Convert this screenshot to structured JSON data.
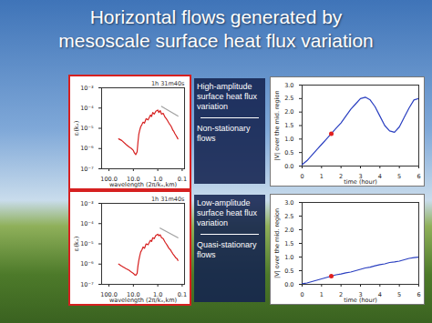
{
  "title": [
    "Horizontal flows generated by",
    "mesoscale surface heat flux variation"
  ],
  "panels": [
    {
      "heading": "High-amplitude surface heat flux variation",
      "result": "Non-stationary flows"
    },
    {
      "heading": "Low-amplitude surface heat flux variation",
      "result": "Quasi-stationary flows"
    }
  ],
  "chart_data": [
    {
      "type": "line",
      "log": true,
      "annotation": "1h 31m40s",
      "x_label": "wavelength (2π/kₓ,km)",
      "y_label": "εᵢ(kₓ)",
      "xlim": [
        200,
        0.08
      ],
      "xticks": [
        {
          "value": 100,
          "label": "100.0"
        },
        {
          "value": 10,
          "label": "10.0"
        },
        {
          "value": 1,
          "label": "1.0"
        },
        {
          "value": 0.1,
          "label": "0.1"
        }
      ],
      "ylim": [
        1e-07,
        0.001
      ],
      "yticks": [
        {
          "value": 1e-07,
          "label": "10⁻⁷"
        },
        {
          "value": 1e-06,
          "label": "10⁻⁶"
        },
        {
          "value": 1e-05,
          "label": "10⁻⁵"
        },
        {
          "value": 0.0001,
          "label": "10⁻⁴"
        },
        {
          "value": 0.001,
          "label": "10⁻³"
        }
      ],
      "series": [
        {
          "color": "#d62020",
          "x": [
            40,
            30,
            20,
            15,
            12,
            10,
            9,
            8,
            7,
            6.5,
            6,
            5.5,
            5,
            4.5,
            4,
            3.5,
            3,
            2.5,
            2,
            1.8,
            1.6,
            1.4,
            1.2,
            1.0,
            0.9,
            0.8,
            0.7,
            0.6,
            0.5,
            0.45,
            0.4,
            0.35,
            0.3,
            0.27,
            0.24,
            0.22,
            0.2,
            0.18,
            0.16,
            0.15
          ],
          "values": [
            3e-06,
            2.5e-06,
            1.6e-06,
            1.2e-06,
            1e-06,
            8e-07,
            6e-07,
            5e-07,
            7e-07,
            2e-06,
            5e-06,
            8e-06,
            1.2e-05,
            1.5e-05,
            2e-05,
            1.8e-05,
            3e-05,
            2.6e-05,
            4.5e-05,
            3.8e-05,
            6e-05,
            5e-05,
            7e-05,
            8e-05,
            6e-05,
            7.5e-05,
            5e-05,
            5.5e-05,
            3.5e-05,
            3e-05,
            2.4e-05,
            1.8e-05,
            1.4e-05,
            1.1e-05,
            8e-06,
            7e-06,
            5.5e-06,
            4.5e-06,
            3.5e-06,
            3e-06
          ]
        },
        {
          "color": "#a0a0a0",
          "x": [
            0.7,
            0.15
          ],
          "values": [
            0.00012,
            4e-05
          ]
        }
      ]
    },
    {
      "type": "line",
      "x_label": "time (hour)",
      "y_label": "|V| over the mid. region",
      "xlim": [
        0,
        6
      ],
      "xticks": [
        0,
        1,
        2,
        3,
        4,
        5,
        6
      ],
      "ylim": [
        0,
        3
      ],
      "yticks": [
        {
          "value": 0,
          "label": "0.0"
        },
        {
          "value": 0.5,
          "label": "0.5"
        },
        {
          "value": 1,
          "label": "1.0"
        },
        {
          "value": 1.5,
          "label": "1.5"
        },
        {
          "value": 2,
          "label": "2.0"
        },
        {
          "value": 2.5,
          "label": "2.5"
        },
        {
          "value": 3,
          "label": "3.0"
        }
      ],
      "series": [
        {
          "color": "#2a3fc0",
          "x": [
            0,
            0.25,
            0.5,
            0.75,
            1,
            1.25,
            1.5,
            1.75,
            2,
            2.25,
            2.5,
            2.75,
            3,
            3.25,
            3.5,
            3.75,
            4,
            4.25,
            4.5,
            4.75,
            5,
            5.25,
            5.5,
            5.75,
            6
          ],
          "values": [
            0.05,
            0.2,
            0.4,
            0.6,
            0.8,
            1.0,
            1.2,
            1.4,
            1.6,
            1.85,
            2.1,
            2.3,
            2.5,
            2.55,
            2.45,
            2.2,
            1.85,
            1.5,
            1.3,
            1.25,
            1.45,
            1.8,
            2.15,
            2.45,
            2.5
          ]
        },
        {
          "type": "scatter",
          "marker": "circle",
          "color": "#e02020",
          "x": [
            1.5
          ],
          "values": [
            1.2
          ]
        }
      ]
    },
    {
      "type": "line",
      "log": true,
      "annotation": "1h 31m40s",
      "x_label": "wavelength (2π/kₓ,km)",
      "y_label": "εᵢ(kₓ)",
      "xlim": [
        200,
        0.08
      ],
      "xticks": [
        {
          "value": 100,
          "label": "100.0"
        },
        {
          "value": 10,
          "label": "10.0"
        },
        {
          "value": 1,
          "label": "1.0"
        },
        {
          "value": 0.1,
          "label": "0.1"
        }
      ],
      "ylim": [
        1e-07,
        0.001
      ],
      "yticks": [
        {
          "value": 1e-07,
          "label": "10⁻⁷"
        },
        {
          "value": 1e-06,
          "label": "10⁻⁶"
        },
        {
          "value": 1e-05,
          "label": "10⁻⁵"
        },
        {
          "value": 0.0001,
          "label": "10⁻⁴"
        },
        {
          "value": 0.001,
          "label": "10⁻³"
        }
      ],
      "series": [
        {
          "color": "#d62020",
          "x": [
            40,
            30,
            20,
            15,
            12,
            10,
            9,
            8,
            7,
            6.5,
            6,
            5.5,
            5,
            4.5,
            4,
            3.5,
            3,
            2.5,
            2,
            1.8,
            1.6,
            1.4,
            1.2,
            1.0,
            0.9,
            0.8,
            0.7,
            0.6,
            0.5,
            0.45,
            0.4,
            0.35,
            0.3,
            0.27,
            0.24,
            0.22,
            0.2,
            0.18,
            0.16,
            0.15
          ],
          "values": [
            1e-06,
            8e-07,
            6e-07,
            5e-07,
            4e-07,
            3.5e-07,
            3e-07,
            2.8e-07,
            3.5e-07,
            8e-07,
            1.5e-06,
            2.5e-06,
            4e-06,
            5e-06,
            7e-06,
            6e-06,
            1e-05,
            9e-06,
            1.5e-05,
            1.3e-05,
            2e-05,
            1.8e-05,
            2.6e-05,
            3e-05,
            2.5e-05,
            2.8e-05,
            2e-05,
            1.8e-05,
            1.2e-05,
            1e-05,
            8e-06,
            6e-06,
            5e-06,
            4e-06,
            3.2e-06,
            2.8e-06,
            2.4e-06,
            2e-06,
            1.8e-06,
            1.5e-06
          ]
        },
        {
          "color": "#a0a0a0",
          "x": [
            0.8,
            0.15
          ],
          "values": [
            6e-05,
            2e-05
          ]
        }
      ]
    },
    {
      "type": "line",
      "x_label": "time (hour)",
      "y_label": "|V| over the mid. region",
      "xlim": [
        0,
        6
      ],
      "xticks": [
        0,
        1,
        2,
        3,
        4,
        5,
        6
      ],
      "ylim": [
        0,
        3
      ],
      "yticks": [
        {
          "value": 0,
          "label": "0.0"
        },
        {
          "value": 0.5,
          "label": "0.5"
        },
        {
          "value": 1,
          "label": "1.0"
        },
        {
          "value": 1.5,
          "label": "1.5"
        },
        {
          "value": 2,
          "label": "2.0"
        },
        {
          "value": 2.5,
          "label": "2.5"
        },
        {
          "value": 3,
          "label": "3.0"
        }
      ],
      "series": [
        {
          "color": "#2a3fc0",
          "x": [
            0,
            0.25,
            0.5,
            0.75,
            1,
            1.25,
            1.5,
            1.75,
            2,
            2.25,
            2.5,
            2.75,
            3,
            3.25,
            3.5,
            3.75,
            4,
            4.25,
            4.5,
            4.75,
            5,
            5.25,
            5.5,
            5.75,
            6
          ],
          "values": [
            0.02,
            0.05,
            0.1,
            0.15,
            0.2,
            0.25,
            0.3,
            0.35,
            0.38,
            0.42,
            0.45,
            0.5,
            0.55,
            0.6,
            0.63,
            0.68,
            0.72,
            0.75,
            0.8,
            0.82,
            0.85,
            0.9,
            0.95,
            0.98,
            1.0
          ]
        },
        {
          "type": "scatter",
          "marker": "circle",
          "color": "#e02020",
          "x": [
            1.5
          ],
          "values": [
            0.3
          ]
        }
      ]
    }
  ]
}
